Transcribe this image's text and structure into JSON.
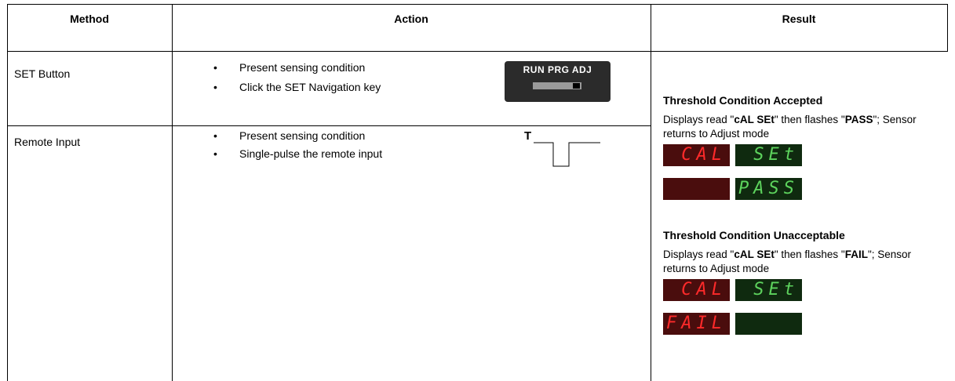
{
  "table": {
    "headers": [
      "Method",
      "Action",
      "Result"
    ],
    "rows": [
      {
        "method": "SET Button",
        "actions": [
          "Present sensing condition",
          "Click the SET Navigation key"
        ],
        "device_label": "RUN PRG ADJ"
      },
      {
        "method": "Remote Input",
        "actions": [
          "Present sensing condition",
          "Single-pulse the remote input"
        ],
        "pulse_label": "T"
      }
    ],
    "results": [
      {
        "heading": "Threshold Condition Accepted",
        "description": [
          "Displays read \"",
          "cAL SEt",
          "\" then flashes \"",
          "PASS",
          "\"; Sensor returns to Adjust mode"
        ],
        "displays": [
          {
            "red": "CAL",
            "green": "SEt"
          },
          {
            "green": "PASS"
          }
        ]
      },
      {
        "heading": "Threshold Condition Unacceptable",
        "description": [
          "Displays read \"",
          "cAL SEt",
          "\" then flashes \"",
          "FAIL",
          "\"; Sensor returns to Adjust mode"
        ],
        "displays": [
          {
            "red": "CAL",
            "green": "SEt"
          },
          {
            "red": "FAIL"
          }
        ]
      }
    ]
  }
}
